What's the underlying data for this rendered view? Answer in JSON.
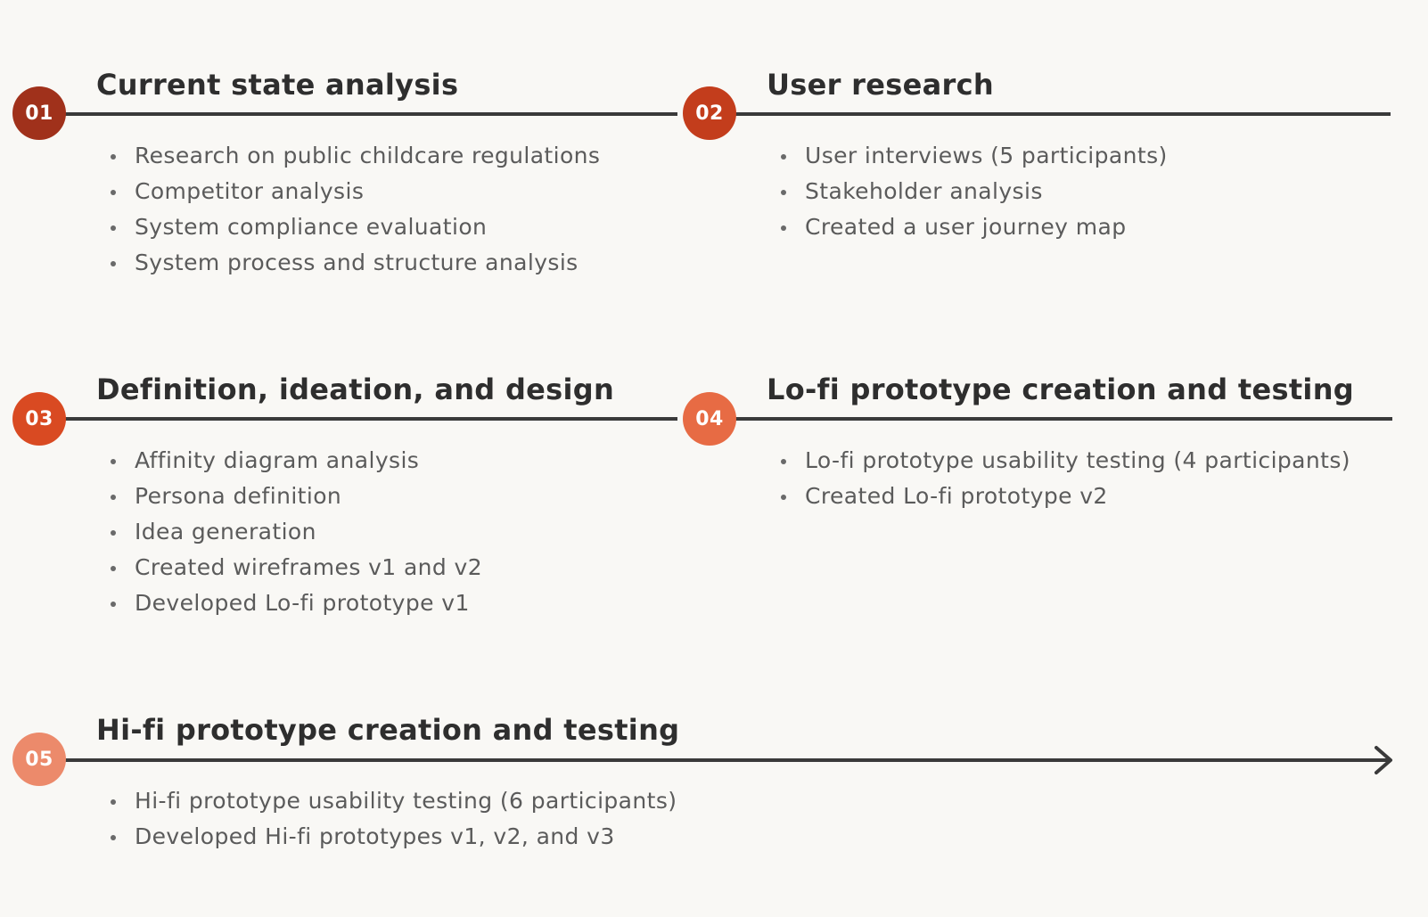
{
  "steps": [
    {
      "number": "01",
      "title": "Current state analysis",
      "color": "#a0311b",
      "items": [
        "Research on public childcare regulations",
        "Competitor analysis",
        "System compliance evaluation",
        "System process and structure analysis"
      ]
    },
    {
      "number": "02",
      "title": "User research",
      "color": "#c33d1c",
      "items": [
        "User interviews (5 participants)",
        "Stakeholder analysis",
        "Created a user journey map"
      ]
    },
    {
      "number": "03",
      "title": "Definition, ideation, and design",
      "color": "#d94a22",
      "items": [
        "Affinity diagram analysis",
        "Persona definition",
        "Idea generation",
        "Created wireframes v1 and v2",
        "Developed Lo-fi prototype v1"
      ]
    },
    {
      "number": "04",
      "title": "Lo-fi prototype creation and testing",
      "color": "#e76b44",
      "items": [
        "Lo-fi prototype usability testing (4 participants)",
        "Created Lo-fi prototype v2"
      ]
    },
    {
      "number": "05",
      "title": "Hi-fi prototype creation and testing",
      "color": "#ec8a6b",
      "items": [
        "Hi-fi prototype usability testing (6 participants)",
        "Developed Hi-fi prototypes v1, v2, and v3"
      ]
    }
  ]
}
